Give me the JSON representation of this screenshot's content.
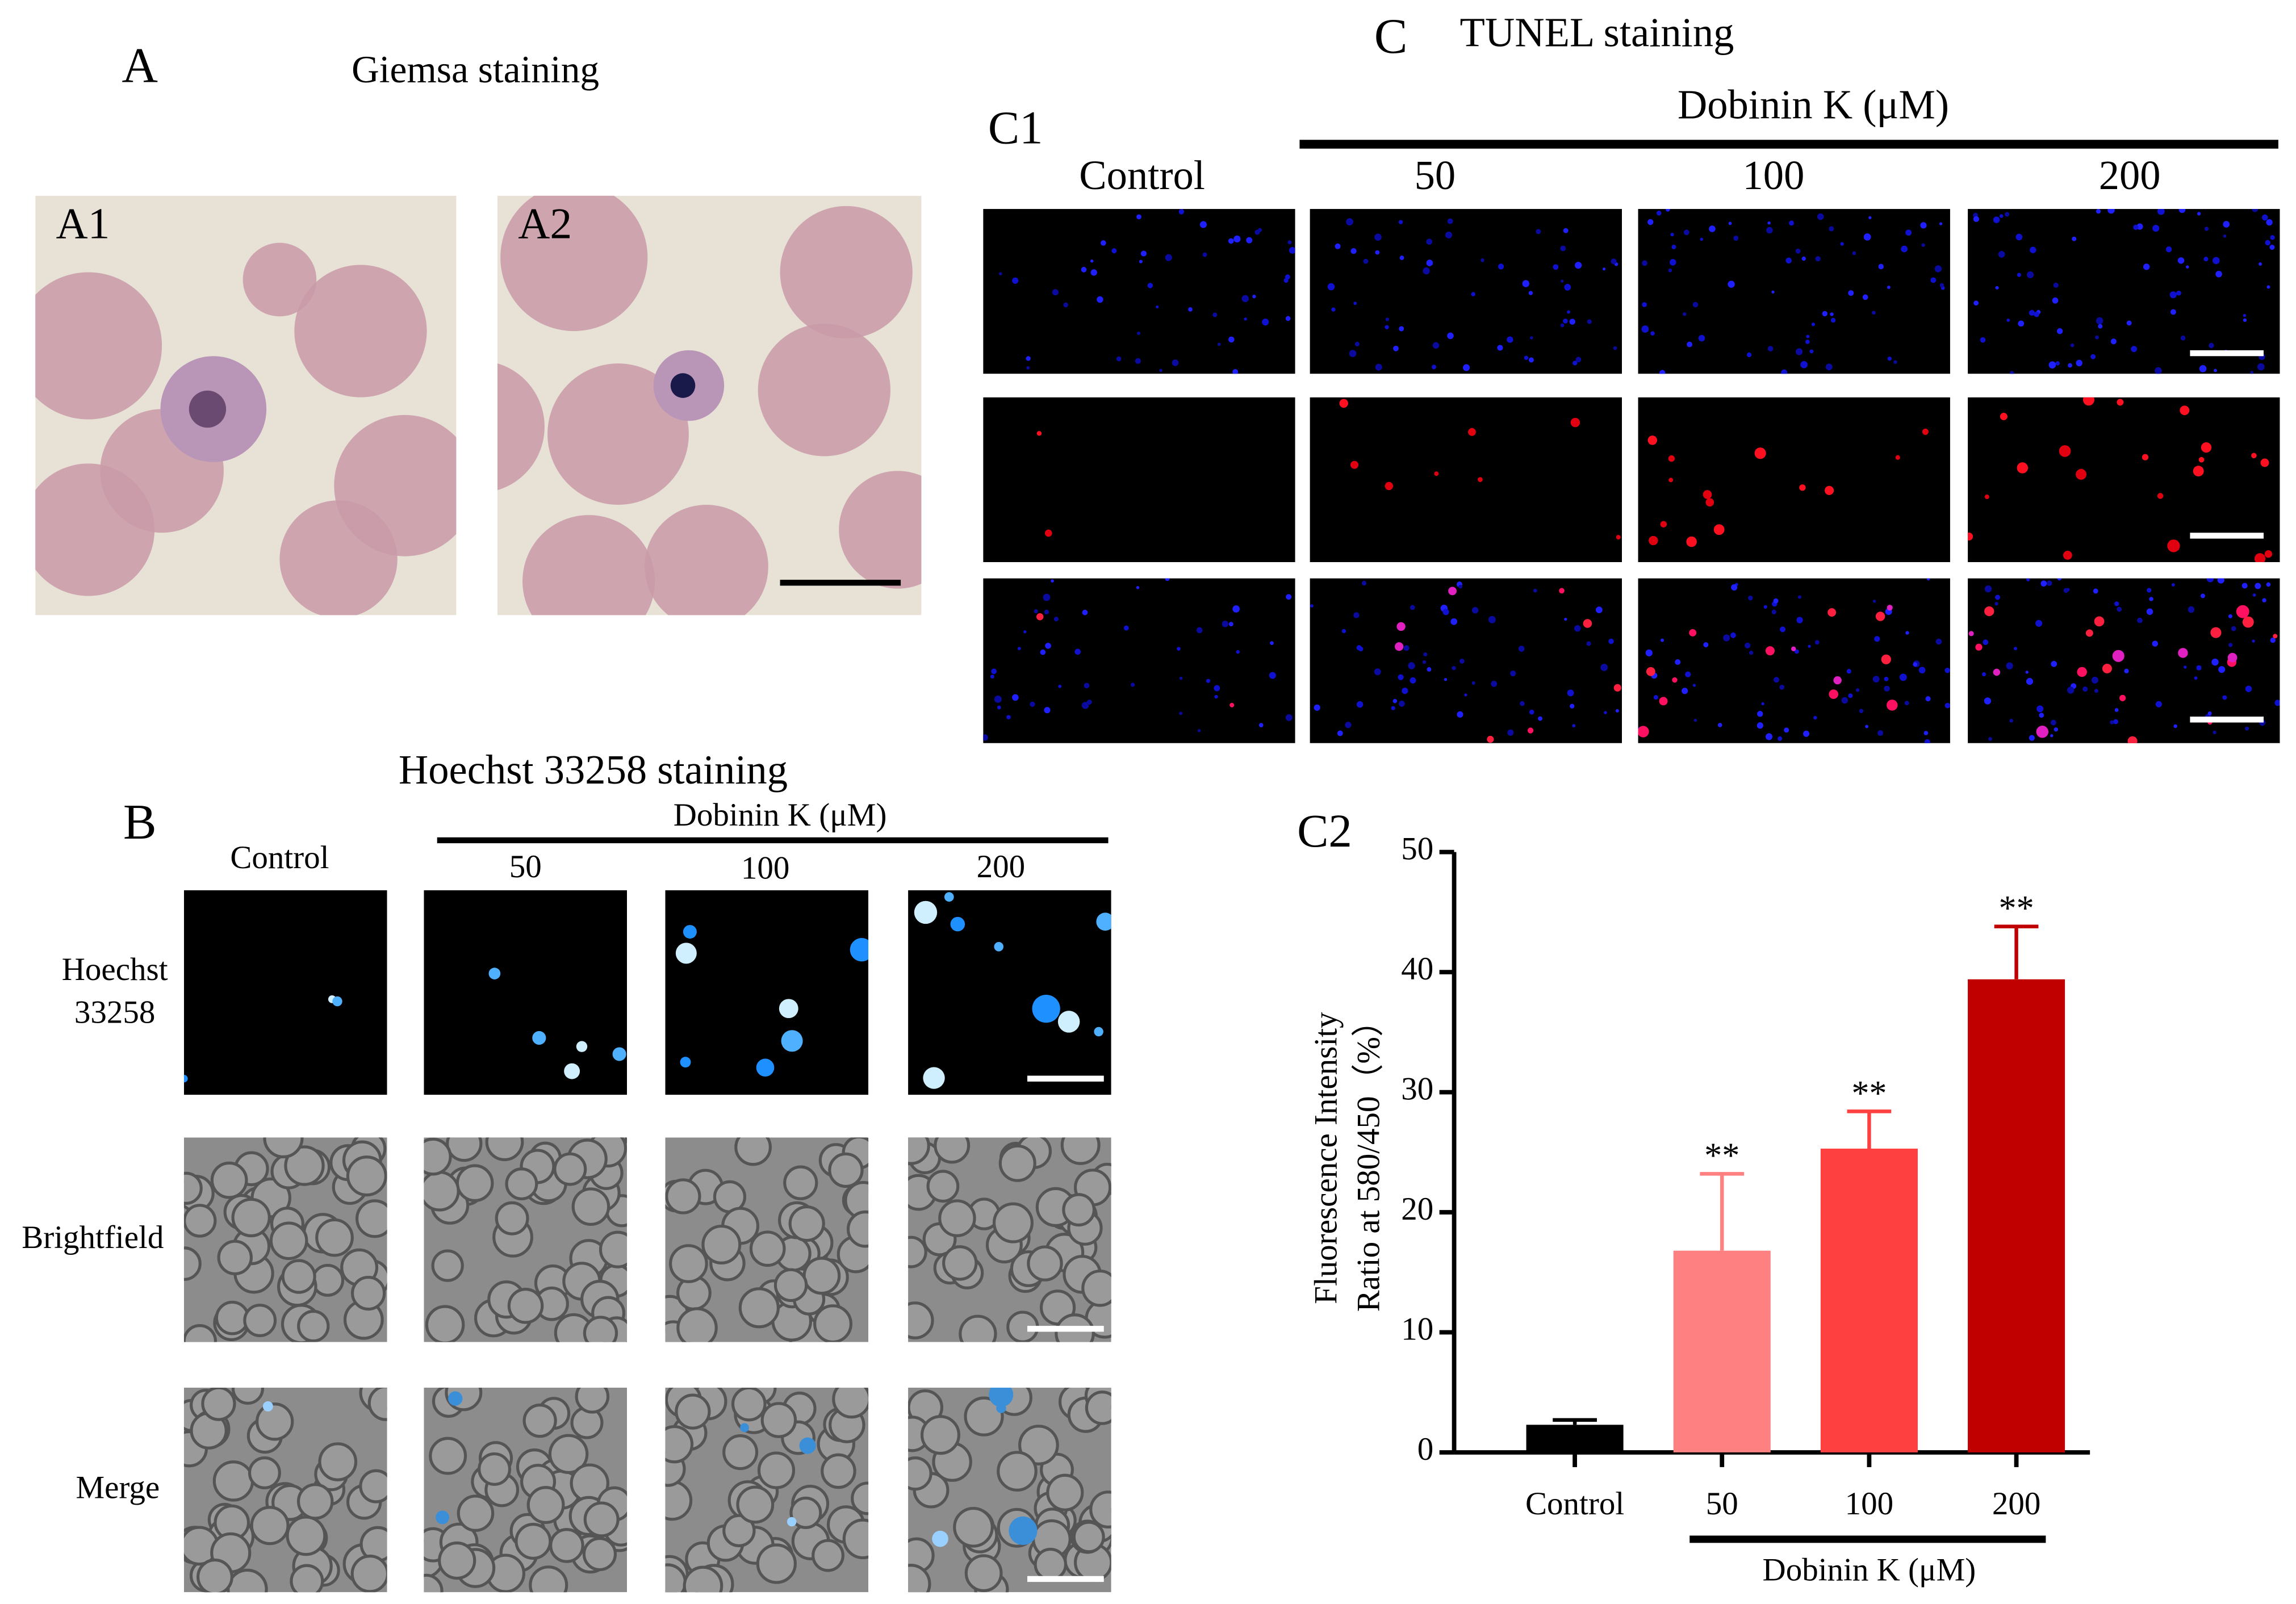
{
  "panel_a": {
    "label": "A",
    "title": "Giemsa staining",
    "images": [
      "A1",
      "A2"
    ]
  },
  "panel_b": {
    "label": "B",
    "title": "Hoechst 33258 staining",
    "treatment": "Dobinin K (μM)",
    "columns": [
      "Control",
      "50",
      "100",
      "200"
    ],
    "rows": [
      [
        "Hoechst",
        "33258"
      ],
      [
        "Brightfield"
      ],
      [
        "Merge"
      ]
    ]
  },
  "panel_c": {
    "label": "C",
    "title": "TUNEL staining",
    "sub_label": "C1",
    "treatment": "Dobinin K (μM)",
    "columns": [
      "Control",
      "50",
      "100",
      "200"
    ]
  },
  "chart_data": {
    "type": "bar",
    "label": "C2",
    "y_label": [
      "Fluorescence Intensity",
      "Ratio at 580/450（%）"
    ],
    "x_label": "Dobinin K (μM)",
    "categories": [
      "Control",
      "50",
      "100",
      "200"
    ],
    "values": [
      2.3,
      16.8,
      25.3,
      39.4
    ],
    "errors": [
      0.4,
      6.4,
      3.1,
      4.4
    ],
    "significance": [
      null,
      "**",
      "**",
      "**"
    ],
    "colors": [
      "#000000",
      "#ff8080",
      "#ff4040",
      "#c00000"
    ],
    "ylim": [
      0,
      50
    ],
    "yticks": [
      0,
      10,
      20,
      30,
      40,
      50
    ]
  }
}
